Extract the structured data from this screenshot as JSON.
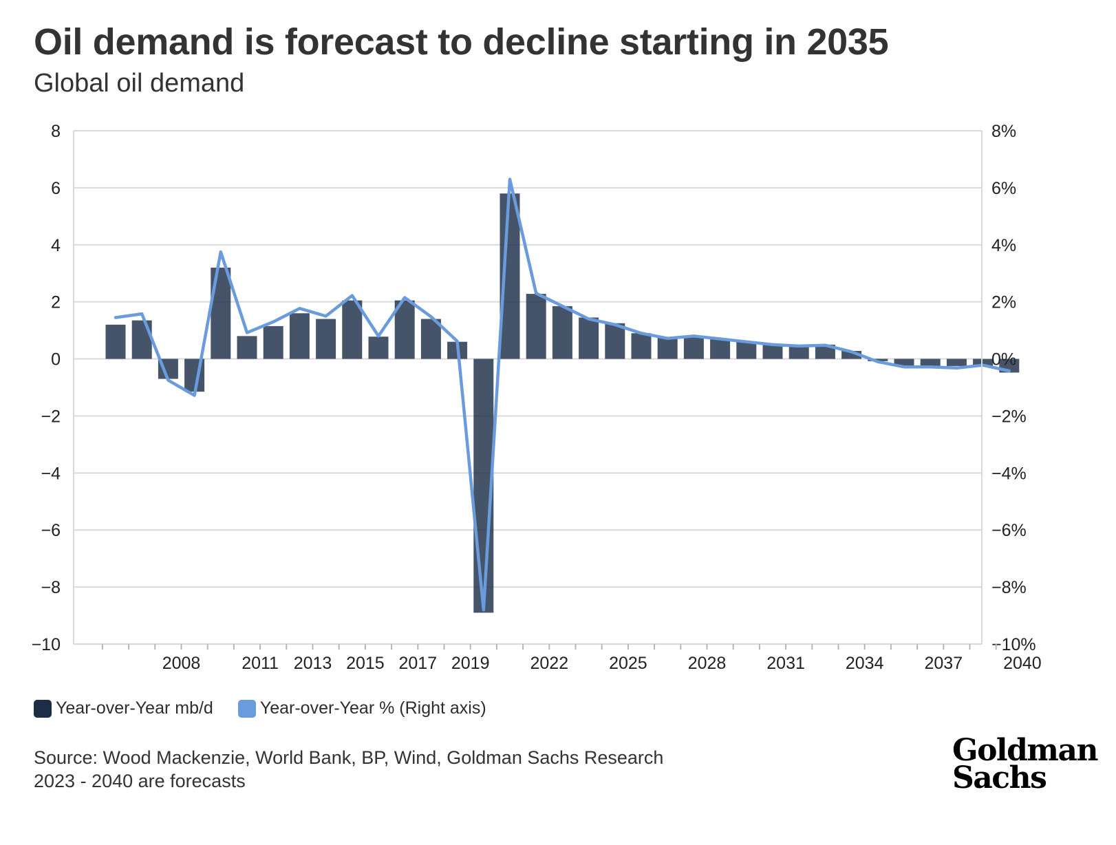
{
  "header": {
    "title": "Oil demand is forecast to decline starting in 2035",
    "subtitle": "Global oil demand"
  },
  "colors": {
    "bar": "#1c2e47",
    "line": "#6a9bdc",
    "grid": "#d9d9d9"
  },
  "legend": {
    "bar_label": "Year-over-Year mb/d",
    "line_label": "Year-over-Year % (Right axis)"
  },
  "footnote": {
    "source": "Source: Wood Mackenzie, World Bank, BP, Wind, Goldman Sachs Research",
    "note": "2023 - 2040 are forecasts"
  },
  "logo": {
    "line1": "Goldman",
    "line2": "Sachs"
  },
  "chart_data": {
    "type": "bar",
    "years": [
      2006,
      2007,
      2008,
      2009,
      2010,
      2011,
      2012,
      2013,
      2014,
      2015,
      2016,
      2017,
      2018,
      2019,
      2020,
      2021,
      2022,
      2023,
      2024,
      2025,
      2026,
      2027,
      2028,
      2029,
      2030,
      2031,
      2032,
      2033,
      2034,
      2035,
      2036,
      2037,
      2038,
      2039,
      2040
    ],
    "x_tick_labels": [
      "2008",
      "2011",
      "2013",
      "2015",
      "2017",
      "2019",
      "2022",
      "2025",
      "2028",
      "2031",
      "2034",
      "2037",
      "2040"
    ],
    "series": [
      {
        "name": "Year-over-Year mb/d",
        "type": "bar",
        "axis": "left",
        "values": [
          1.2,
          1.35,
          -0.7,
          -1.15,
          3.2,
          0.8,
          1.15,
          1.6,
          1.4,
          2.05,
          0.78,
          2.05,
          1.4,
          0.6,
          -8.9,
          5.8,
          2.28,
          1.85,
          1.45,
          1.25,
          0.9,
          0.75,
          0.82,
          0.7,
          0.6,
          0.5,
          0.45,
          0.5,
          0.28,
          -0.08,
          -0.25,
          -0.25,
          -0.25,
          -0.25,
          -0.48
        ]
      },
      {
        "name": "Year-over-Year % (Right axis)",
        "type": "line",
        "axis": "right",
        "values": [
          1.45,
          1.58,
          -0.75,
          -1.28,
          3.75,
          0.92,
          1.3,
          1.77,
          1.5,
          2.22,
          0.8,
          2.15,
          1.48,
          0.62,
          -8.8,
          6.3,
          2.3,
          1.85,
          1.4,
          1.2,
          0.9,
          0.72,
          0.8,
          0.7,
          0.6,
          0.5,
          0.45,
          0.48,
          0.25,
          -0.1,
          -0.28,
          -0.28,
          -0.32,
          -0.22,
          -0.42
        ]
      }
    ],
    "left_axis": {
      "ylim": [
        -10,
        8
      ],
      "ticks": [
        "8",
        "6",
        "4",
        "2",
        "0",
        "−2",
        "−4",
        "−6",
        "−8",
        "−10"
      ]
    },
    "right_axis": {
      "ylim": [
        -10,
        8
      ],
      "ticks": [
        "8%",
        "6%",
        "4%",
        "2%",
        "0%",
        "−2%",
        "−4%",
        "−6%",
        "−8%",
        "−10%"
      ]
    },
    "grid": true,
    "legend_position": "bottom-left"
  }
}
